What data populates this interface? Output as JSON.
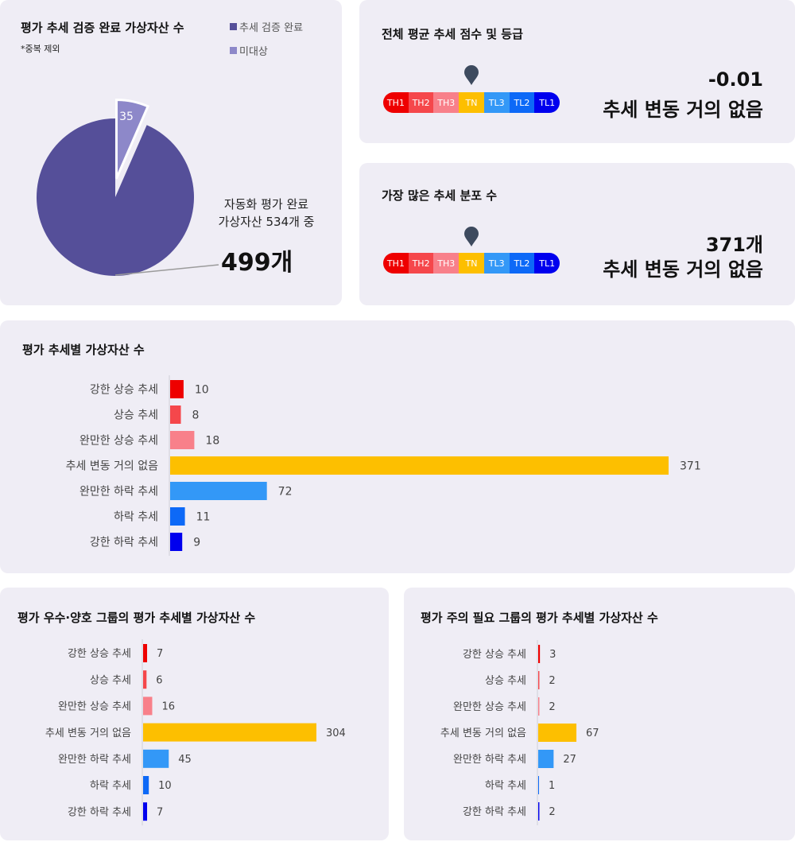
{
  "verification": {
    "title": "평가 추세 검증 완료 가상자산 수",
    "note": "*중복 제외",
    "legend": [
      {
        "label": "추세 검증 완료",
        "color": "#554f99"
      },
      {
        "label": "미대상",
        "color": "#8d88c9"
      }
    ],
    "pie": {
      "completed": 499,
      "excluded": 35,
      "excluded_label": "35"
    },
    "caption_line1": "자동화 평가 완료",
    "caption_line2": "가상자산 534개 중",
    "big_value": "499개"
  },
  "scale_labels": [
    "TH1",
    "TH2",
    "TH3",
    "TN",
    "TL3",
    "TL2",
    "TL1"
  ],
  "scale_colors": [
    "#ee0000",
    "#f5474b",
    "#f8808a",
    "#fdbf00",
    "#3398f7",
    "#0d69f7",
    "#0000ee"
  ],
  "avg_score": {
    "title": "전체 평균 추세 점수 및 등급",
    "pointer_index": 3,
    "value": "-0.01",
    "grade": "추세 변동 거의 없음"
  },
  "most_common": {
    "title": "가장 많은 추세 분포 수",
    "pointer_index": 3,
    "value": "371개",
    "grade": "추세 변동 거의 없음"
  },
  "chart_data": [
    {
      "type": "bar",
      "orientation": "horizontal",
      "title": "평가 추세별 가상자산 수",
      "categories": [
        "강한 상승 추세",
        "상승 추세",
        "완만한 상승 추세",
        "추세 변동 거의 없음",
        "완만한 하락 추세",
        "하락 추세",
        "강한 하락 추세"
      ],
      "values": [
        10,
        8,
        18,
        371,
        72,
        11,
        9
      ],
      "xlim": [
        0,
        371
      ]
    },
    {
      "type": "bar",
      "orientation": "horizontal",
      "title": "평가 우수·양호 그룹의 평가 추세별 가상자산 수",
      "categories": [
        "강한 상승 추세",
        "상승 추세",
        "완만한 상승 추세",
        "추세 변동 거의 없음",
        "완만한 하락 추세",
        "하락 추세",
        "강한 하락 추세"
      ],
      "values": [
        7,
        6,
        16,
        304,
        45,
        10,
        7
      ],
      "xlim": [
        0,
        304
      ]
    },
    {
      "type": "bar",
      "orientation": "horizontal",
      "title": "평가 주의 필요 그룹의 평가 추세별 가상자산 수",
      "categories": [
        "강한 상승 추세",
        "상승 추세",
        "완만한 상승 추세",
        "추세 변동 거의 없음",
        "완만한 하락 추세",
        "하락 추세",
        "강한 하락 추세"
      ],
      "values": [
        3,
        2,
        2,
        67,
        27,
        1,
        2
      ],
      "xlim": [
        0,
        304
      ]
    }
  ]
}
